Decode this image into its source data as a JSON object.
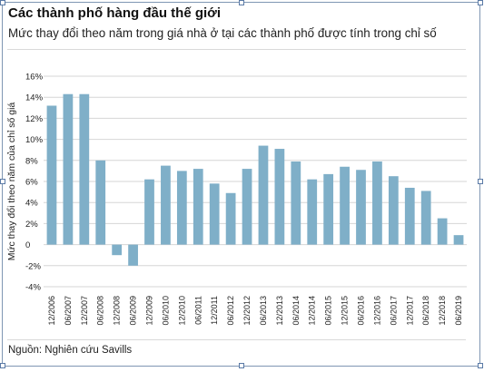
{
  "header": {
    "title": "Các thành phố hàng đầu thế giới",
    "subtitle": "Mức thay đổi theo năm trong giá nhà ở tại các thành phố được tính trong chỉ số"
  },
  "footer": {
    "source": "Nguồn: Nghiên cứu Savills"
  },
  "colors": {
    "bar": "#7fafc8",
    "grid": "#d6d6d6"
  },
  "chart_data": {
    "type": "bar",
    "ylabel": "Mức thay đổi theo năm của chỉ số giá",
    "ylim": [
      -4,
      16
    ],
    "yticks": [
      -4,
      -2,
      0,
      2,
      4,
      6,
      8,
      10,
      12,
      14,
      16
    ],
    "ytick_labels": [
      "-4%",
      "-2%",
      "0",
      "2%",
      "4%",
      "6%",
      "8%",
      "10%",
      "12%",
      "14%",
      "16%"
    ],
    "grid": true,
    "categories": [
      "12/2006",
      "06/2007",
      "12/2007",
      "06/2008",
      "12/2008",
      "06/2009",
      "12/2009",
      "06/2010",
      "12/2010",
      "06/2011",
      "12/2011",
      "06/2012",
      "12/2012",
      "06/2013",
      "12/2013",
      "06/2014",
      "12/2014",
      "06/2015",
      "12/2015",
      "06/2016",
      "12/2016",
      "06/2017",
      "12/2017",
      "06/2018",
      "12/2018",
      "06/2019"
    ],
    "values": [
      13.2,
      14.3,
      14.3,
      8.0,
      -1.0,
      -2.0,
      6.2,
      7.5,
      7.0,
      7.2,
      5.8,
      4.9,
      7.2,
      9.4,
      9.1,
      7.9,
      6.2,
      6.7,
      7.4,
      7.1,
      7.9,
      6.5,
      5.4,
      5.1,
      2.5,
      0.9
    ]
  }
}
